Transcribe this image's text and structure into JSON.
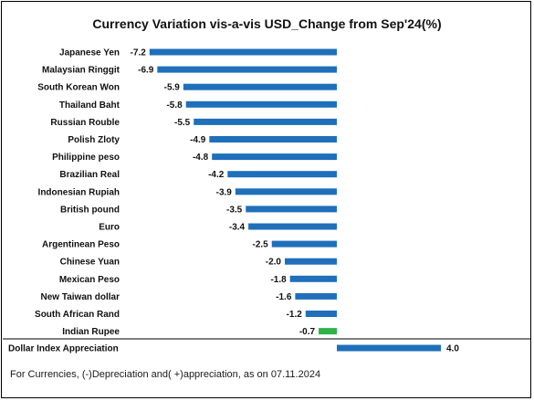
{
  "chart_data": {
    "type": "bar",
    "orientation": "horizontal",
    "title": "Currency Variation vis-a-vis USD_Change from Sep'24(%)",
    "categories": [
      "Japanese Yen",
      "Malaysian Ringgit",
      "South Korean Won",
      "Thailand Baht",
      "Russian Rouble",
      "Polish Zloty",
      "Philippine peso",
      "Brazilian Real",
      "Indonesian Rupiah",
      "British pound",
      "Euro",
      "Argentinean Peso",
      "Chinese Yuan",
      "Mexican Peso",
      "New Taiwan dollar",
      "South African Rand",
      "Indian Rupee",
      "Dollar Index Appreciation"
    ],
    "values": [
      -7.2,
      -6.9,
      -5.9,
      -5.8,
      -5.5,
      -4.9,
      -4.8,
      -4.2,
      -3.9,
      -3.5,
      -3.4,
      -2.5,
      -2.0,
      -1.8,
      -1.6,
      -1.2,
      -0.7,
      4.0
    ],
    "value_labels": [
      "-7.2",
      "-6.9",
      "-5.9",
      "-5.8",
      "-5.5",
      "-4.9",
      "-4.8",
      "-4.2",
      "-3.9",
      "-3.5",
      "-3.4",
      "-2.5",
      "-2.0",
      "-1.8",
      "-1.6",
      "-1.2",
      "-0.7",
      "4.0"
    ],
    "highlight_category": "Indian Rupee",
    "colors": {
      "default": "#1f6fba",
      "highlight": "#2db34a"
    },
    "grid": false,
    "legend": "none"
  },
  "footnote": {
    "prefix": "For Currencies, ",
    "text": "(-)Depreciation and( +)appreciation, as on 07.11.2024"
  }
}
